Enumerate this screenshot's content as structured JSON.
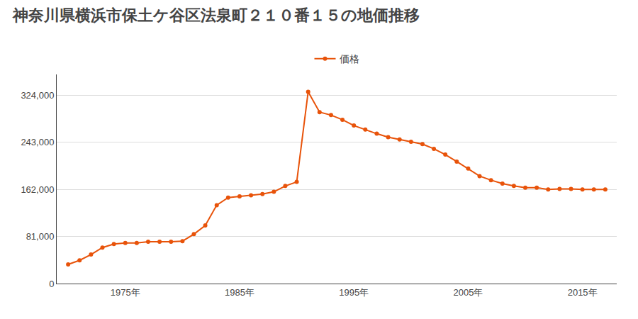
{
  "chart_data": {
    "type": "line",
    "title": "神奈川県横浜市保土ケ谷区法泉町２１０番１５の地価推移",
    "x": [
      1970,
      1971,
      1972,
      1973,
      1974,
      1975,
      1976,
      1977,
      1978,
      1979,
      1980,
      1981,
      1982,
      1983,
      1984,
      1985,
      1986,
      1987,
      1988,
      1989,
      1990,
      1991,
      1992,
      1993,
      1994,
      1995,
      1996,
      1997,
      1998,
      1999,
      2000,
      2001,
      2002,
      2003,
      2004,
      2005,
      2006,
      2007,
      2008,
      2009,
      2010,
      2011,
      2012,
      2013,
      2014,
      2015,
      2016,
      2017
    ],
    "series": [
      {
        "name": "価格",
        "color": "#e8530a",
        "marker": "circle",
        "values": [
          33000,
          40000,
          50000,
          62000,
          68000,
          70000,
          70000,
          72000,
          72000,
          72000,
          73000,
          85000,
          100000,
          135000,
          148000,
          150000,
          152000,
          154000,
          158000,
          168000,
          175000,
          330000,
          295000,
          290000,
          282000,
          272000,
          265000,
          258000,
          252000,
          248000,
          244000,
          240000,
          232000,
          222000,
          210000,
          198000,
          185000,
          178000,
          172000,
          168000,
          165000,
          165000,
          162000,
          163000,
          163000,
          162000,
          162000,
          162000
        ]
      }
    ],
    "xlim": [
      1969,
      2018
    ],
    "xticks": [
      {
        "value": 1975,
        "label": "1975年"
      },
      {
        "value": 1985,
        "label": "1985年"
      },
      {
        "value": 1995,
        "label": "1995年"
      },
      {
        "value": 2005,
        "label": "2005年"
      },
      {
        "value": 2015,
        "label": "2015年"
      }
    ],
    "ylim": [
      0,
      360000
    ],
    "yticks": [
      0,
      {
        "value": 81000,
        "label": "81,000"
      },
      {
        "value": 162000,
        "label": "162,000"
      },
      {
        "value": 243000,
        "label": "243,000"
      },
      {
        "value": 324000,
        "label": "324,000"
      }
    ],
    "grid": "y",
    "legend": "top"
  }
}
